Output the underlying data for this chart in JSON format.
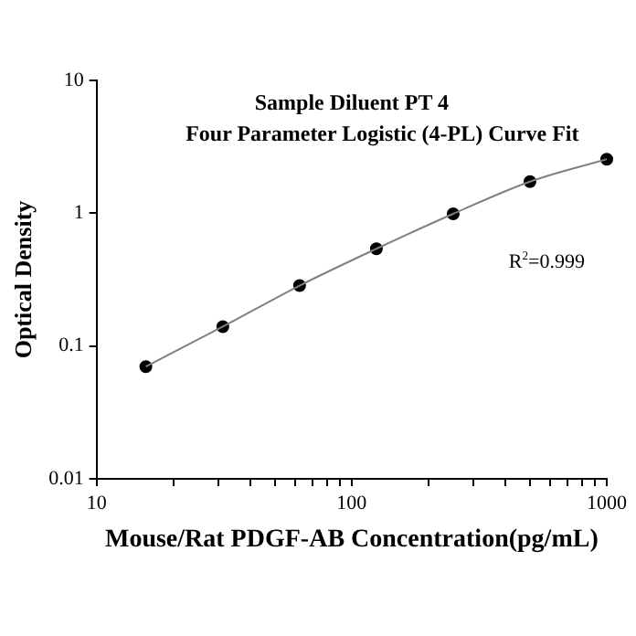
{
  "chart_data": {
    "type": "scatter",
    "title": "Sample Diluent PT 4\nFour Parameter Logistic (4-PL) Curve Fit",
    "xlabel": "Mouse/Rat PDGF-AB Concentration(pg/mL)",
    "ylabel": "Optical Density",
    "x": [
      15.6,
      31.25,
      62.5,
      125,
      250,
      500,
      1000
    ],
    "series": [
      {
        "type": "line",
        "color": "#808080",
        "marker": "none",
        "values": [
          0.07,
          0.14,
          0.285,
          0.54,
          0.99,
          1.73,
          2.55
        ]
      },
      {
        "color": "#000000",
        "marker": "circle",
        "values": [
          0.07,
          0.14,
          0.285,
          0.54,
          0.99,
          1.73,
          2.55
        ]
      }
    ],
    "log": "xy",
    "xlim": [
      10,
      1000
    ],
    "ylim": [
      0.01,
      10
    ],
    "xticks": [
      10,
      {
        "value": 20,
        "label": null
      },
      {
        "value": 30,
        "label": null
      },
      {
        "value": 40,
        "label": null
      },
      {
        "value": 50,
        "label": null
      },
      {
        "value": 60,
        "label": null
      },
      {
        "value": 70,
        "label": null
      },
      {
        "value": 80,
        "label": null
      },
      {
        "value": 90,
        "label": null
      },
      100,
      {
        "value": 200,
        "label": null
      },
      {
        "value": 300,
        "label": null
      },
      {
        "value": 400,
        "label": null
      },
      {
        "value": 500,
        "label": null
      },
      {
        "value": 600,
        "label": null
      },
      {
        "value": 700,
        "label": null
      },
      {
        "value": 800,
        "label": null
      },
      {
        "value": 900,
        "label": null
      },
      1000
    ],
    "yticks": [
      0.01,
      0.1,
      1,
      10
    ],
    "grid": false,
    "legend": false,
    "annotations": [
      "R$^{2}$=0.999"
    ]
  }
}
